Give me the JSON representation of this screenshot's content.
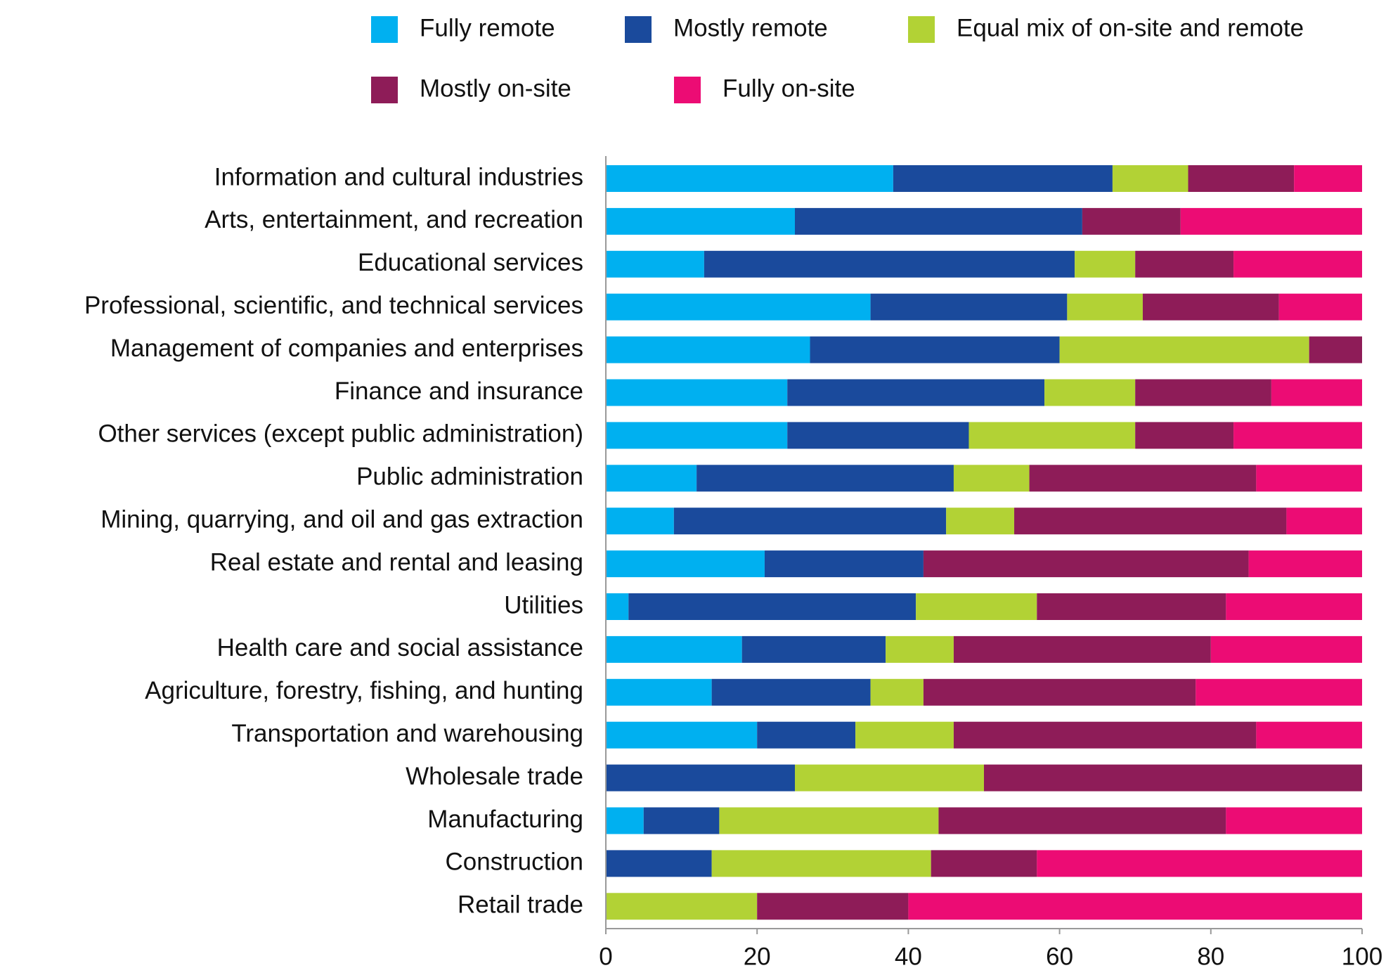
{
  "chart_data": {
    "type": "stacked-barh",
    "categories": [
      "Information and cultural industries",
      "Arts, entertainment, and recreation",
      "Educational services",
      "Professional, scientific, and technical services",
      "Management of companies and enterprises",
      "Finance and insurance",
      "Other services (except public administration)",
      "Public administration",
      "Mining, quarrying, and oil and gas extraction",
      "Real estate and rental and leasing",
      "Utilities",
      "Health care and social assistance",
      "Agriculture, forestry, fishing, and hunting",
      "Transportation and warehousing",
      "Wholesale trade",
      "Manufacturing",
      "Construction",
      "Retail trade"
    ],
    "series": [
      {
        "name": "Fully remote",
        "color": "#00b0f0",
        "values": [
          38,
          25,
          13,
          35,
          27,
          24,
          24,
          12,
          9,
          21,
          3,
          18,
          14,
          20,
          0,
          5,
          0,
          0
        ]
      },
      {
        "name": "Mostly remote",
        "color": "#1a4a9c",
        "values": [
          29,
          38,
          49,
          26,
          33,
          34,
          24,
          34,
          36,
          21,
          38,
          19,
          21,
          13,
          25,
          10,
          14,
          0
        ]
      },
      {
        "name": "Equal mix of on-site and remote",
        "color": "#b2d235",
        "values": [
          10,
          0,
          8,
          10,
          33,
          12,
          22,
          10,
          9,
          0,
          16,
          9,
          7,
          13,
          25,
          29,
          29,
          20
        ]
      },
      {
        "name": "Mostly on-site",
        "color": "#8e1c58",
        "values": [
          14,
          13,
          13,
          18,
          7,
          18,
          13,
          30,
          36,
          43,
          25,
          34,
          36,
          40,
          50,
          38,
          14,
          20
        ]
      },
      {
        "name": "Fully on-site",
        "color": "#ec0c74",
        "values": [
          9,
          24,
          17,
          11,
          0,
          12,
          17,
          14,
          10,
          15,
          18,
          20,
          22,
          14,
          0,
          18,
          43,
          60
        ]
      }
    ],
    "xlim": [
      0,
      100
    ],
    "xticks": [
      0,
      20,
      40,
      60,
      80,
      100
    ],
    "grid": false
  }
}
